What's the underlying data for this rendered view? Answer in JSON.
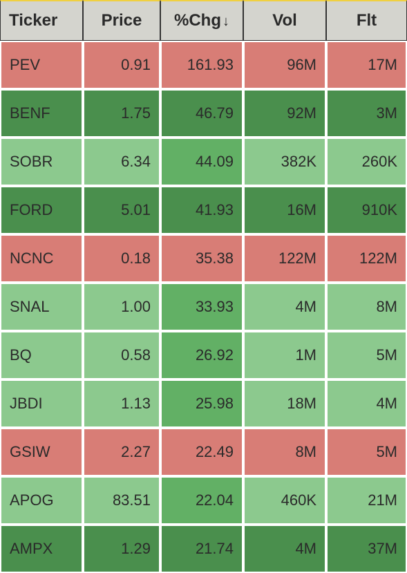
{
  "table": {
    "columns": [
      {
        "label": "Ticker",
        "sortable": true
      },
      {
        "label": "Price",
        "sortable": true
      },
      {
        "label": "%Chg",
        "sortable": true,
        "sort_dir": "desc"
      },
      {
        "label": "Vol",
        "sortable": true
      },
      {
        "label": "Flt",
        "sortable": true
      }
    ],
    "column_widths": [
      "120px",
      "112px",
      "120px",
      "120px",
      "117px"
    ],
    "colors": {
      "red": "#d87d76",
      "dark_green": "#4a8f4d",
      "light_green": "#8cc98e",
      "mid_green": "#62b065",
      "header_bg": "#d4d4ce",
      "border_top": "#f0d040",
      "text": "#2a2a2a"
    },
    "rows": [
      {
        "ticker": "PEV",
        "price": "0.91",
        "chg": "161.93",
        "vol": "96M",
        "flt": "17M",
        "cell_bg": [
          "red",
          "red",
          "red",
          "red",
          "red"
        ]
      },
      {
        "ticker": "BENF",
        "price": "1.75",
        "chg": "46.79",
        "vol": "92M",
        "flt": "3M",
        "cell_bg": [
          "dark_green",
          "dark_green",
          "dark_green",
          "dark_green",
          "dark_green"
        ]
      },
      {
        "ticker": "SOBR",
        "price": "6.34",
        "chg": "44.09",
        "vol": "382K",
        "flt": "260K",
        "cell_bg": [
          "light_green",
          "light_green",
          "mid_green",
          "light_green",
          "light_green"
        ]
      },
      {
        "ticker": "FORD",
        "price": "5.01",
        "chg": "41.93",
        "vol": "16M",
        "flt": "910K",
        "cell_bg": [
          "dark_green",
          "dark_green",
          "dark_green",
          "dark_green",
          "dark_green"
        ]
      },
      {
        "ticker": "NCNC",
        "price": "0.18",
        "chg": "35.38",
        "vol": "122M",
        "flt": "122M",
        "cell_bg": [
          "red",
          "red",
          "red",
          "red",
          "red"
        ]
      },
      {
        "ticker": "SNAL",
        "price": "1.00",
        "chg": "33.93",
        "vol": "4M",
        "flt": "8M",
        "cell_bg": [
          "light_green",
          "light_green",
          "mid_green",
          "light_green",
          "light_green"
        ]
      },
      {
        "ticker": "BQ",
        "price": "0.58",
        "chg": "26.92",
        "vol": "1M",
        "flt": "5M",
        "cell_bg": [
          "light_green",
          "light_green",
          "mid_green",
          "light_green",
          "light_green"
        ]
      },
      {
        "ticker": "JBDI",
        "price": "1.13",
        "chg": "25.98",
        "vol": "18M",
        "flt": "4M",
        "cell_bg": [
          "light_green",
          "light_green",
          "mid_green",
          "light_green",
          "light_green"
        ]
      },
      {
        "ticker": "GSIW",
        "price": "2.27",
        "chg": "22.49",
        "vol": "8M",
        "flt": "5M",
        "cell_bg": [
          "red",
          "red",
          "red",
          "red",
          "red"
        ]
      },
      {
        "ticker": "APOG",
        "price": "83.51",
        "chg": "22.04",
        "vol": "460K",
        "flt": "21M",
        "cell_bg": [
          "light_green",
          "light_green",
          "mid_green",
          "light_green",
          "light_green"
        ]
      },
      {
        "ticker": "AMPX",
        "price": "1.29",
        "chg": "21.74",
        "vol": "4M",
        "flt": "37M",
        "cell_bg": [
          "dark_green",
          "dark_green",
          "dark_green",
          "dark_green",
          "dark_green"
        ]
      }
    ]
  }
}
